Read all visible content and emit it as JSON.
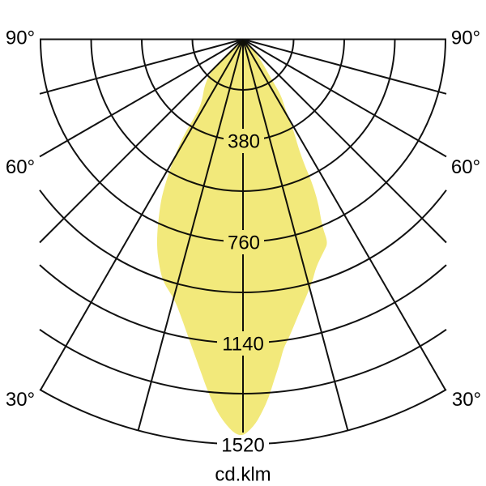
{
  "labels": {
    "left": [
      "90°",
      "60°",
      "30°"
    ],
    "right": [
      "90°",
      "60°",
      "30°"
    ],
    "rings": [
      "380",
      "760",
      "1140",
      "1520"
    ],
    "unit": "cd.klm"
  },
  "colors": {
    "grid": "#111111",
    "background": "#ffffff",
    "text": "#000000",
    "label_box": "#ffffff",
    "beam_fill": "#F2E97B"
  },
  "chart_data": {
    "type": "polar-photometric",
    "title": "Luminous intensity distribution",
    "unit": "cd.klm",
    "angle_axis": {
      "zero_direction": "down",
      "range_deg": [
        -90,
        90
      ],
      "grid_step_deg": 15,
      "tick_labels_deg": [
        90,
        60,
        30
      ]
    },
    "intensity_axis": {
      "unit": "cd.klm",
      "labeled_rings": [
        380,
        760,
        1140,
        1520
      ],
      "all_rings": [
        190,
        380,
        570,
        760,
        950,
        1140,
        1330,
        1520
      ],
      "max": 1520
    },
    "beam": {
      "peak_intensity_cd_klm": 1500,
      "peak_angle_deg": 0,
      "fwhm_deg": 51,
      "boundary_theta_deg_intensity": [
        [
          -47.5,
          60
        ],
        [
          -46.3,
          160
        ],
        [
          -40,
          225
        ],
        [
          -33.5,
          278
        ],
        [
          -31.9,
          330
        ],
        [
          -31.7,
          434
        ],
        [
          -29.9,
          531
        ],
        [
          -28.1,
          626
        ],
        [
          -26.5,
          700
        ],
        [
          -23.1,
          830
        ],
        [
          -19.9,
          918
        ],
        [
          -18,
          962
        ],
        [
          -14.8,
          1009
        ],
        [
          -12.7,
          1063
        ],
        [
          -9.9,
          1154
        ],
        [
          -7.4,
          1251
        ],
        [
          -5.5,
          1338
        ],
        [
          -3.4,
          1426
        ],
        [
          -0.5,
          1500
        ],
        [
          1.6,
          1454
        ],
        [
          2.9,
          1403
        ],
        [
          4.2,
          1344
        ],
        [
          5.2,
          1285
        ],
        [
          6.4,
          1227
        ],
        [
          7.5,
          1168
        ],
        [
          8.8,
          1132
        ],
        [
          11.8,
          1043
        ],
        [
          15.8,
          951
        ],
        [
          17.8,
          897
        ],
        [
          21,
          850
        ],
        [
          22.7,
          827
        ],
        [
          22.9,
          764
        ],
        [
          24.8,
          673
        ],
        [
          25.9,
          578
        ],
        [
          26,
          534
        ],
        [
          27.1,
          454
        ],
        [
          29.2,
          387
        ],
        [
          30.8,
          315
        ],
        [
          34.3,
          254
        ],
        [
          35.5,
          183
        ],
        [
          40,
          110
        ],
        [
          44.5,
          55
        ],
        [
          47,
          10
        ]
      ]
    }
  }
}
